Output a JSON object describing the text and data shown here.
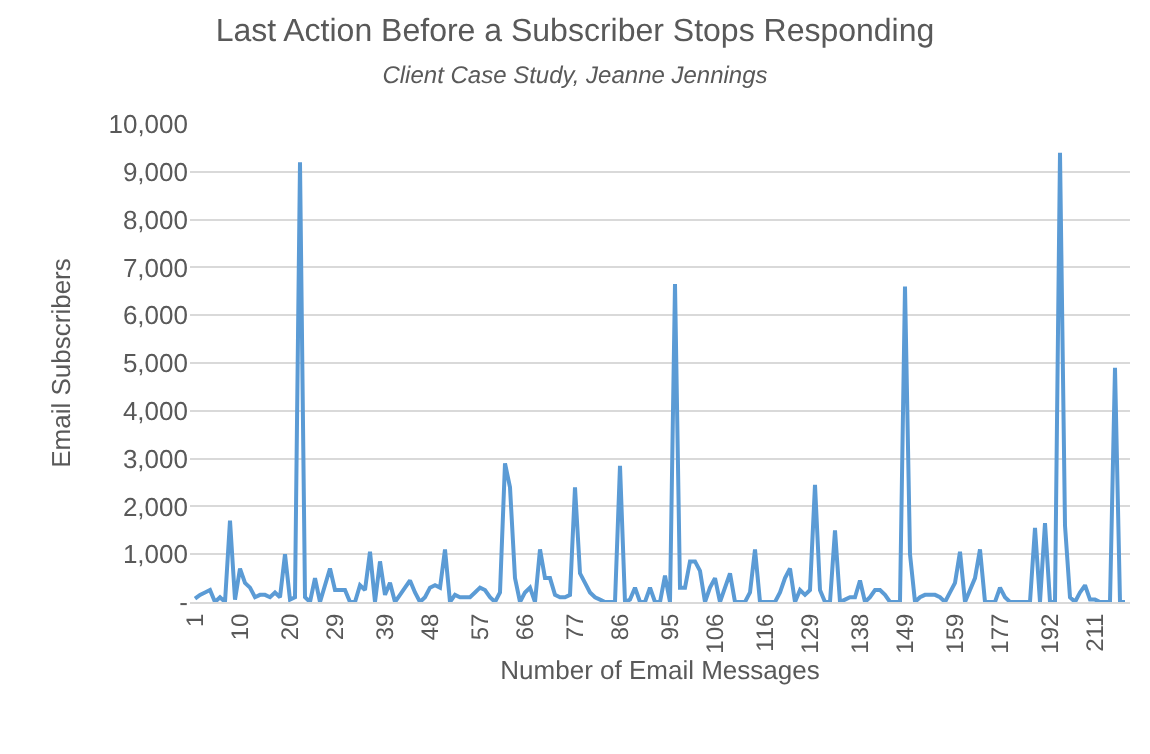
{
  "chart_data": {
    "type": "line",
    "title": "Last Action Before a Subscriber Stops Responding",
    "subtitle": "Client Case Study, Jeanne Jennings",
    "xlabel": "Number of Email Messages",
    "ylabel": "Email Subscribers",
    "categories": [
      "1",
      null,
      null,
      null,
      null,
      null,
      null,
      null,
      null,
      "10",
      null,
      null,
      null,
      null,
      null,
      null,
      null,
      null,
      null,
      "20",
      null,
      null,
      null,
      null,
      null,
      null,
      null,
      null,
      "29",
      null,
      null,
      null,
      null,
      null,
      null,
      null,
      null,
      null,
      "39",
      null,
      null,
      null,
      null,
      null,
      null,
      null,
      null,
      "48",
      null,
      null,
      null,
      null,
      null,
      null,
      null,
      null,
      null,
      "57",
      null,
      null,
      null,
      null,
      null,
      null,
      null,
      null,
      "66",
      null,
      null,
      null,
      null,
      null,
      null,
      null,
      null,
      null,
      "77",
      null,
      null,
      null,
      null,
      null,
      null,
      null,
      null,
      "86",
      null,
      null,
      null,
      null,
      null,
      null,
      null,
      null,
      null,
      "95",
      null,
      null,
      null,
      null,
      null,
      null,
      null,
      null,
      "106",
      null,
      null,
      null,
      null,
      null,
      null,
      null,
      null,
      null,
      "116",
      null,
      null,
      null,
      null,
      null,
      null,
      null,
      null,
      "129",
      null,
      null,
      null,
      null,
      null,
      null,
      null,
      null,
      null,
      "138",
      null,
      null,
      null,
      null,
      null,
      null,
      null,
      null,
      "149",
      null,
      null,
      null,
      null,
      null,
      null,
      null,
      null,
      null,
      "159",
      null,
      null,
      null,
      null,
      null,
      null,
      null,
      null,
      "177",
      null,
      null,
      null,
      null,
      null,
      null,
      null,
      null,
      null,
      "192",
      null,
      null,
      null,
      null,
      null,
      null,
      null,
      null,
      "211",
      null,
      null,
      null,
      null,
      null,
      null
    ],
    "series": [
      {
        "color": "#5b9bd5",
        "values": [
          70,
          150,
          200,
          250,
          0,
          100,
          0,
          1700,
          50,
          700,
          400,
          300,
          100,
          150,
          150,
          100,
          200,
          100,
          1000,
          50,
          100,
          9200,
          100,
          0,
          500,
          0,
          350,
          700,
          250,
          250,
          250,
          0,
          0,
          350,
          250,
          1050,
          0,
          850,
          150,
          400,
          0,
          150,
          300,
          450,
          200,
          0,
          100,
          300,
          350,
          300,
          1100,
          0,
          150,
          100,
          100,
          100,
          200,
          300,
          250,
          100,
          0,
          200,
          2900,
          2400,
          500,
          0,
          200,
          300,
          0,
          1100,
          500,
          500,
          150,
          100,
          100,
          150,
          2400,
          600,
          400,
          200,
          100,
          50,
          0,
          0,
          0,
          2850,
          0,
          50,
          300,
          0,
          0,
          300,
          0,
          0,
          550,
          0,
          6650,
          300,
          300,
          850,
          850,
          650,
          0,
          300,
          500,
          0,
          300,
          600,
          0,
          0,
          0,
          200,
          1100,
          0,
          0,
          0,
          0,
          200,
          500,
          700,
          0,
          250,
          150,
          250,
          2450,
          250,
          0,
          0,
          1500,
          0,
          50,
          100,
          100,
          450,
          0,
          100,
          250,
          250,
          150,
          0,
          0,
          0,
          6600,
          1000,
          0,
          100,
          150,
          150,
          150,
          100,
          0,
          200,
          400,
          1050,
          0,
          250,
          500,
          1100,
          0,
          0,
          0,
          300,
          100,
          0,
          0,
          0,
          0,
          0,
          1550,
          0,
          1650,
          0,
          0,
          9400,
          1600,
          100,
          0,
          200,
          350,
          50,
          50,
          0,
          0,
          0,
          4900,
          0,
          0
        ]
      }
    ],
    "ylim": [
      0,
      10000
    ],
    "yticks": [
      {
        "value": 0,
        "label": "-"
      },
      {
        "value": 1000,
        "label": "1,000"
      },
      {
        "value": 2000,
        "label": "2,000"
      },
      {
        "value": 3000,
        "label": "3,000"
      },
      {
        "value": 4000,
        "label": "4,000"
      },
      {
        "value": 5000,
        "label": "5,000"
      },
      {
        "value": 6000,
        "label": "6,000"
      },
      {
        "value": 7000,
        "label": "7,000"
      },
      {
        "value": 8000,
        "label": "8,000"
      },
      {
        "value": 9000,
        "label": "9,000"
      },
      {
        "value": 10000,
        "label": "10,000"
      }
    ],
    "grid": "y",
    "legend": false,
    "marker": "none",
    "line_style": "solid"
  }
}
